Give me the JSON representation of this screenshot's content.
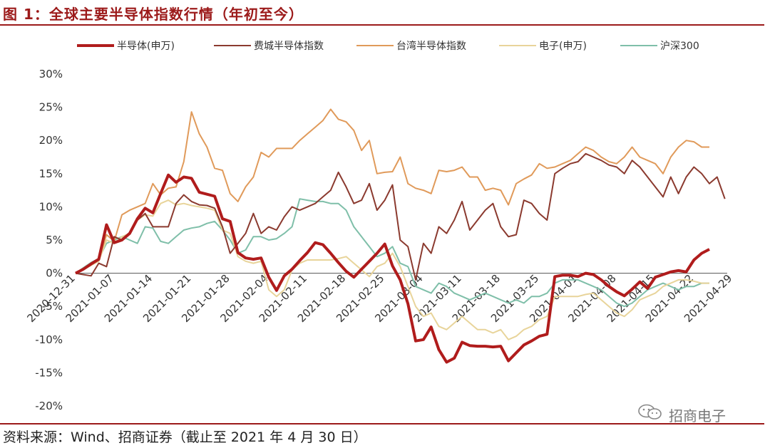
{
  "header": {
    "title": "图 1：全球主要半导体指数行情（年初至今）"
  },
  "footer": {
    "source": "资料来源：Wind、招商证券（截止至 2021 年 4 月 30 日）"
  },
  "watermark": {
    "label": "招商电子",
    "icon": "wechat-icon"
  },
  "chart_data": {
    "type": "line",
    "legend_position": "top",
    "grid": false,
    "ylim": [
      -20,
      30
    ],
    "yticks": [
      "30%",
      "25%",
      "20%",
      "15%",
      "10%",
      "5%",
      "0%",
      "-5%",
      "-10%",
      "-15%",
      "-20%"
    ],
    "ytick_values": [
      30,
      25,
      20,
      15,
      10,
      5,
      0,
      -5,
      -10,
      -15,
      -20
    ],
    "x_index_range": [
      0,
      82
    ],
    "xticks": [
      "2020-12-31",
      "2021-01-07",
      "2021-01-14",
      "2021-01-21",
      "2021-01-28",
      "2021-02-04",
      "2021-02-11",
      "2021-02-18",
      "2021-02-25",
      "2021-03-04",
      "2021-03-11",
      "2021-03-18",
      "2021-03-25",
      "2021-04-01",
      "2021-04-08",
      "2021-04-15",
      "2021-04-22",
      "2021-04-29"
    ],
    "xtick_index": [
      0,
      5,
      10,
      15,
      20,
      25,
      30,
      35,
      40,
      45,
      50,
      55,
      60,
      65,
      70,
      75,
      80,
      85
    ],
    "series": [
      {
        "name": "半导体(申万)",
        "color": "#b01c1c",
        "width": 4,
        "values": [
          0,
          0.6,
          1.4,
          2.1,
          7.3,
          4.6,
          5.0,
          6.0,
          8.2,
          9.8,
          9.1,
          12.0,
          14.8,
          13.7,
          14.5,
          14.3,
          12.2,
          11.9,
          11.6,
          8.2,
          7.8,
          3.1,
          2.3,
          2.1,
          2.3,
          -0.6,
          -2.6,
          -0.4,
          0.6,
          1.9,
          3.1,
          4.6,
          4.3,
          3.0,
          1.6,
          0.3,
          -0.6,
          0.6,
          1.8,
          3.0,
          4.4,
          1.1,
          -1.0,
          -4.6,
          -10.2,
          -10.0,
          -8.1,
          -11.5,
          -13.4,
          -12.8,
          -10.4,
          -10.9,
          -11.0,
          -11.0,
          -11.1,
          -11.0,
          -13.2,
          -12.0,
          -10.8,
          -10.2,
          -9.5,
          -9.2,
          -0.5,
          -0.3,
          -0.3,
          -0.5,
          0.0,
          -0.2,
          -1.0,
          -2.0,
          -2.8,
          -3.4,
          -2.4,
          -1.3,
          -2.3,
          -0.6,
          -0.2,
          0.2,
          0.4,
          0.2,
          2.0,
          3.0,
          3.6
        ]
      },
      {
        "name": "费城半导体指数",
        "color": "#8b3a2f",
        "width": 2,
        "values": [
          0,
          -0.2,
          -0.4,
          1.5,
          1.0,
          5.5,
          5.0,
          6.0,
          8.0,
          9.0,
          7.0,
          7.0,
          7.0,
          10.5,
          11.8,
          10.8,
          10.3,
          10.2,
          9.8,
          7.0,
          3.0,
          4.5,
          6.0,
          9.0,
          6.0,
          7.0,
          6.5,
          8.5,
          10.0,
          9.5,
          10.0,
          10.5,
          11.5,
          12.5,
          15.2,
          13.0,
          10.5,
          11.0,
          13.5,
          9.5,
          11.0,
          13.3,
          5.0,
          4.0,
          -1.0,
          4.5,
          3.0,
          7.0,
          6.0,
          8.0,
          10.8,
          6.5,
          8.0,
          9.5,
          10.5,
          7.0,
          5.5,
          5.8,
          11.0,
          10.5,
          9.0,
          8.0,
          15.0,
          15.8,
          16.5,
          16.8,
          18.0,
          17.5,
          17.0,
          16.3,
          16.0,
          15.0,
          17.0,
          16.0,
          14.5,
          13.0,
          11.5,
          14.5,
          12.0,
          14.5,
          16.0,
          15.0,
          13.5,
          14.5,
          11.2
        ]
      },
      {
        "name": "台湾半导体指数",
        "color": "#e09a5a",
        "width": 2,
        "values": [
          0,
          0.6,
          1.2,
          2.0,
          5.8,
          4.8,
          8.8,
          9.5,
          10.0,
          10.5,
          13.5,
          11.8,
          12.8,
          13.0,
          16.8,
          24.3,
          21.0,
          19.0,
          15.8,
          15.5,
          12.0,
          10.8,
          13.0,
          14.5,
          18.2,
          17.5,
          18.8,
          18.8,
          18.8,
          20.0,
          21.0,
          22.0,
          23.0,
          24.7,
          23.2,
          22.8,
          21.5,
          18.5,
          20.0,
          15.0,
          15.2,
          15.3,
          17.5,
          13.5,
          12.8,
          12.5,
          12.0,
          15.5,
          15.3,
          15.5,
          16.0,
          14.5,
          14.5,
          12.5,
          12.8,
          12.5,
          10.3,
          13.5,
          14.2,
          14.8,
          16.5,
          15.8,
          16.0,
          16.5,
          17.0,
          18.0,
          19.0,
          18.5,
          17.5,
          16.8,
          16.5,
          17.5,
          19.0,
          17.5,
          17.0,
          16.5,
          15.0,
          17.5,
          19.0,
          20.0,
          19.8,
          19.0,
          19.0
        ]
      },
      {
        "name": "电子(申万)",
        "color": "#e8d49a",
        "width": 2,
        "values": [
          0,
          0.5,
          1.2,
          1.8,
          5.0,
          4.5,
          5.5,
          6.0,
          8.0,
          8.8,
          8.6,
          10.5,
          11.0,
          10.3,
          10.5,
          10.2,
          10.0,
          9.8,
          9.5,
          6.5,
          6.0,
          2.5,
          1.8,
          1.5,
          1.8,
          -2.5,
          -3.5,
          -2.5,
          0.5,
          1.5,
          2.0,
          2.0,
          2.0,
          2.0,
          2.2,
          2.5,
          1.5,
          0.5,
          -0.5,
          1.0,
          1.5,
          3.0,
          1.0,
          -2.0,
          -5.0,
          -6.5,
          -6.0,
          -8.0,
          -8.5,
          -7.5,
          -6.5,
          -7.5,
          -8.5,
          -8.5,
          -9.0,
          -8.5,
          -10.0,
          -9.5,
          -8.5,
          -8.0,
          -7.0,
          -6.5,
          -3.5,
          -3.5,
          -3.5,
          -3.5,
          -3.2,
          -3.0,
          -4.0,
          -5.0,
          -6.0,
          -6.5,
          -5.5,
          -4.0,
          -3.5,
          -3.0,
          -2.0,
          -1.5,
          -1.0,
          -1.0,
          -1.2,
          -1.5,
          -1.5
        ]
      },
      {
        "name": "沪深300",
        "color": "#7fbfa9",
        "width": 2,
        "values": [
          0,
          0.8,
          1.6,
          2.2,
          4.5,
          5.0,
          5.5,
          5.0,
          4.5,
          7.0,
          6.8,
          4.8,
          4.5,
          5.5,
          6.5,
          6.8,
          7.0,
          7.5,
          7.8,
          6.5,
          5.0,
          3.0,
          3.5,
          5.5,
          5.5,
          5.0,
          5.2,
          6.0,
          7.0,
          11.2,
          11.0,
          10.8,
          10.8,
          10.5,
          10.5,
          9.5,
          7.0,
          5.5,
          4.0,
          2.5,
          3.0,
          4.0,
          1.5,
          1.0,
          -2.0,
          -2.5,
          -3.0,
          -1.5,
          -2.0,
          -3.0,
          -3.5,
          -4.0,
          -3.5,
          -3.0,
          -3.5,
          -4.0,
          -4.5,
          -4.0,
          -4.5,
          -3.5,
          -3.5,
          -3.0,
          -1.5,
          -1.0,
          -1.0,
          -1.0,
          -1.5,
          -2.0,
          -2.5,
          -3.5,
          -4.5,
          -5.0,
          -4.5,
          -3.5,
          -2.5,
          -2.0,
          -1.5,
          -2.0,
          -2.5,
          -2.0,
          -2.0,
          -1.5,
          -1.5
        ]
      }
    ]
  }
}
